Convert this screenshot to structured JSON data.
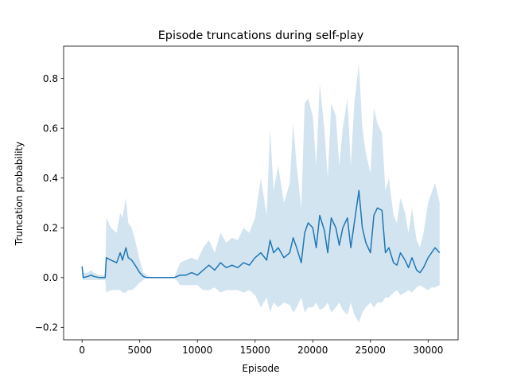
{
  "chart_data": {
    "type": "line",
    "title": "Episode truncations during self-play",
    "xlabel": "Episode",
    "ylabel": "Truncation probability",
    "xlim": [
      -1600,
      32600
    ],
    "ylim": [
      -0.25,
      0.93
    ],
    "xticks": [
      0,
      5000,
      10000,
      15000,
      20000,
      25000,
      30000
    ],
    "xtick_labels": [
      "0",
      "5000",
      "10000",
      "15000",
      "20000",
      "25000",
      "30000"
    ],
    "yticks": [
      -0.2,
      0.0,
      0.2,
      0.4,
      0.6,
      0.8
    ],
    "ytick_labels": [
      "−0.2",
      "0.0",
      "0.2",
      "0.4",
      "0.6",
      "0.8"
    ],
    "grid": false,
    "colors": {
      "line": "#1f77b4",
      "band": "#1f77b4",
      "band_opacity": 0.2
    },
    "series": [
      {
        "kind": "mean_with_band",
        "x": [
          0,
          100,
          500,
          800,
          1000,
          1500,
          2000,
          2100,
          2500,
          3000,
          3300,
          3500,
          3800,
          4000,
          4300,
          4600,
          5000,
          5300,
          5600,
          6000,
          7000,
          8000,
          8500,
          9000,
          9500,
          10000,
          10500,
          11000,
          11500,
          12000,
          12500,
          13000,
          13500,
          14000,
          14500,
          15000,
          15500,
          16000,
          16300,
          16600,
          17000,
          17500,
          18000,
          18300,
          18600,
          19000,
          19300,
          19600,
          20000,
          20300,
          20600,
          21000,
          21300,
          21600,
          22000,
          22300,
          22600,
          23000,
          23300,
          23600,
          24000,
          24300,
          24600,
          25000,
          25300,
          25600,
          26000,
          26300,
          26600,
          27000,
          27300,
          27600,
          28000,
          28300,
          28600,
          29000,
          29300,
          29600,
          30000,
          30300,
          30600,
          31000
        ],
        "mean": [
          0.045,
          0.0,
          0.005,
          0.01,
          0.005,
          0.0,
          0.0,
          0.08,
          0.07,
          0.06,
          0.1,
          0.07,
          0.12,
          0.08,
          0.07,
          0.05,
          0.02,
          0.005,
          0.0,
          0.0,
          0.0,
          0.0,
          0.01,
          0.01,
          0.02,
          0.01,
          0.03,
          0.05,
          0.03,
          0.06,
          0.04,
          0.05,
          0.04,
          0.06,
          0.05,
          0.08,
          0.1,
          0.07,
          0.15,
          0.1,
          0.12,
          0.08,
          0.1,
          0.16,
          0.12,
          0.06,
          0.18,
          0.22,
          0.2,
          0.12,
          0.25,
          0.19,
          0.1,
          0.24,
          0.2,
          0.13,
          0.2,
          0.24,
          0.12,
          0.22,
          0.35,
          0.2,
          0.14,
          0.1,
          0.25,
          0.28,
          0.27,
          0.1,
          0.12,
          0.06,
          0.05,
          0.1,
          0.07,
          0.04,
          0.08,
          0.03,
          0.02,
          0.04,
          0.08,
          0.1,
          0.12,
          0.1
        ],
        "upper": [
          0.06,
          0.02,
          0.02,
          0.03,
          0.02,
          0.01,
          0.01,
          0.24,
          0.2,
          0.18,
          0.26,
          0.24,
          0.32,
          0.22,
          0.2,
          0.15,
          0.07,
          0.02,
          0.01,
          0.0,
          0.0,
          0.0,
          0.06,
          0.07,
          0.08,
          0.07,
          0.12,
          0.15,
          0.1,
          0.18,
          0.14,
          0.16,
          0.15,
          0.2,
          0.18,
          0.24,
          0.4,
          0.25,
          0.6,
          0.35,
          0.45,
          0.3,
          0.38,
          0.62,
          0.45,
          0.28,
          0.7,
          0.72,
          0.65,
          0.45,
          0.78,
          0.6,
          0.4,
          0.7,
          0.65,
          0.45,
          0.6,
          0.72,
          0.45,
          0.7,
          0.86,
          0.6,
          0.5,
          0.42,
          0.68,
          0.62,
          0.58,
          0.35,
          0.4,
          0.25,
          0.22,
          0.32,
          0.26,
          0.18,
          0.28,
          0.15,
          0.12,
          0.18,
          0.3,
          0.34,
          0.38,
          0.3
        ],
        "lower": [
          0.0,
          -0.01,
          -0.01,
          -0.01,
          -0.01,
          -0.01,
          -0.01,
          -0.06,
          -0.05,
          -0.05,
          -0.05,
          -0.06,
          -0.06,
          -0.05,
          -0.05,
          -0.04,
          -0.02,
          -0.01,
          0.0,
          0.0,
          0.0,
          0.0,
          -0.03,
          -0.03,
          -0.03,
          -0.03,
          -0.05,
          -0.05,
          -0.04,
          -0.06,
          -0.05,
          -0.05,
          -0.05,
          -0.06,
          -0.05,
          -0.07,
          -0.12,
          -0.08,
          -0.14,
          -0.1,
          -0.12,
          -0.1,
          -0.11,
          -0.14,
          -0.12,
          -0.08,
          -0.14,
          -0.12,
          -0.12,
          -0.1,
          -0.13,
          -0.12,
          -0.1,
          -0.14,
          -0.12,
          -0.1,
          -0.13,
          -0.15,
          -0.1,
          -0.15,
          -0.18,
          -0.14,
          -0.12,
          -0.1,
          -0.12,
          -0.1,
          -0.1,
          -0.08,
          -0.08,
          -0.06,
          -0.05,
          -0.07,
          -0.06,
          -0.05,
          -0.06,
          -0.04,
          -0.03,
          -0.04,
          -0.05,
          -0.04,
          -0.04,
          -0.03
        ]
      }
    ]
  }
}
